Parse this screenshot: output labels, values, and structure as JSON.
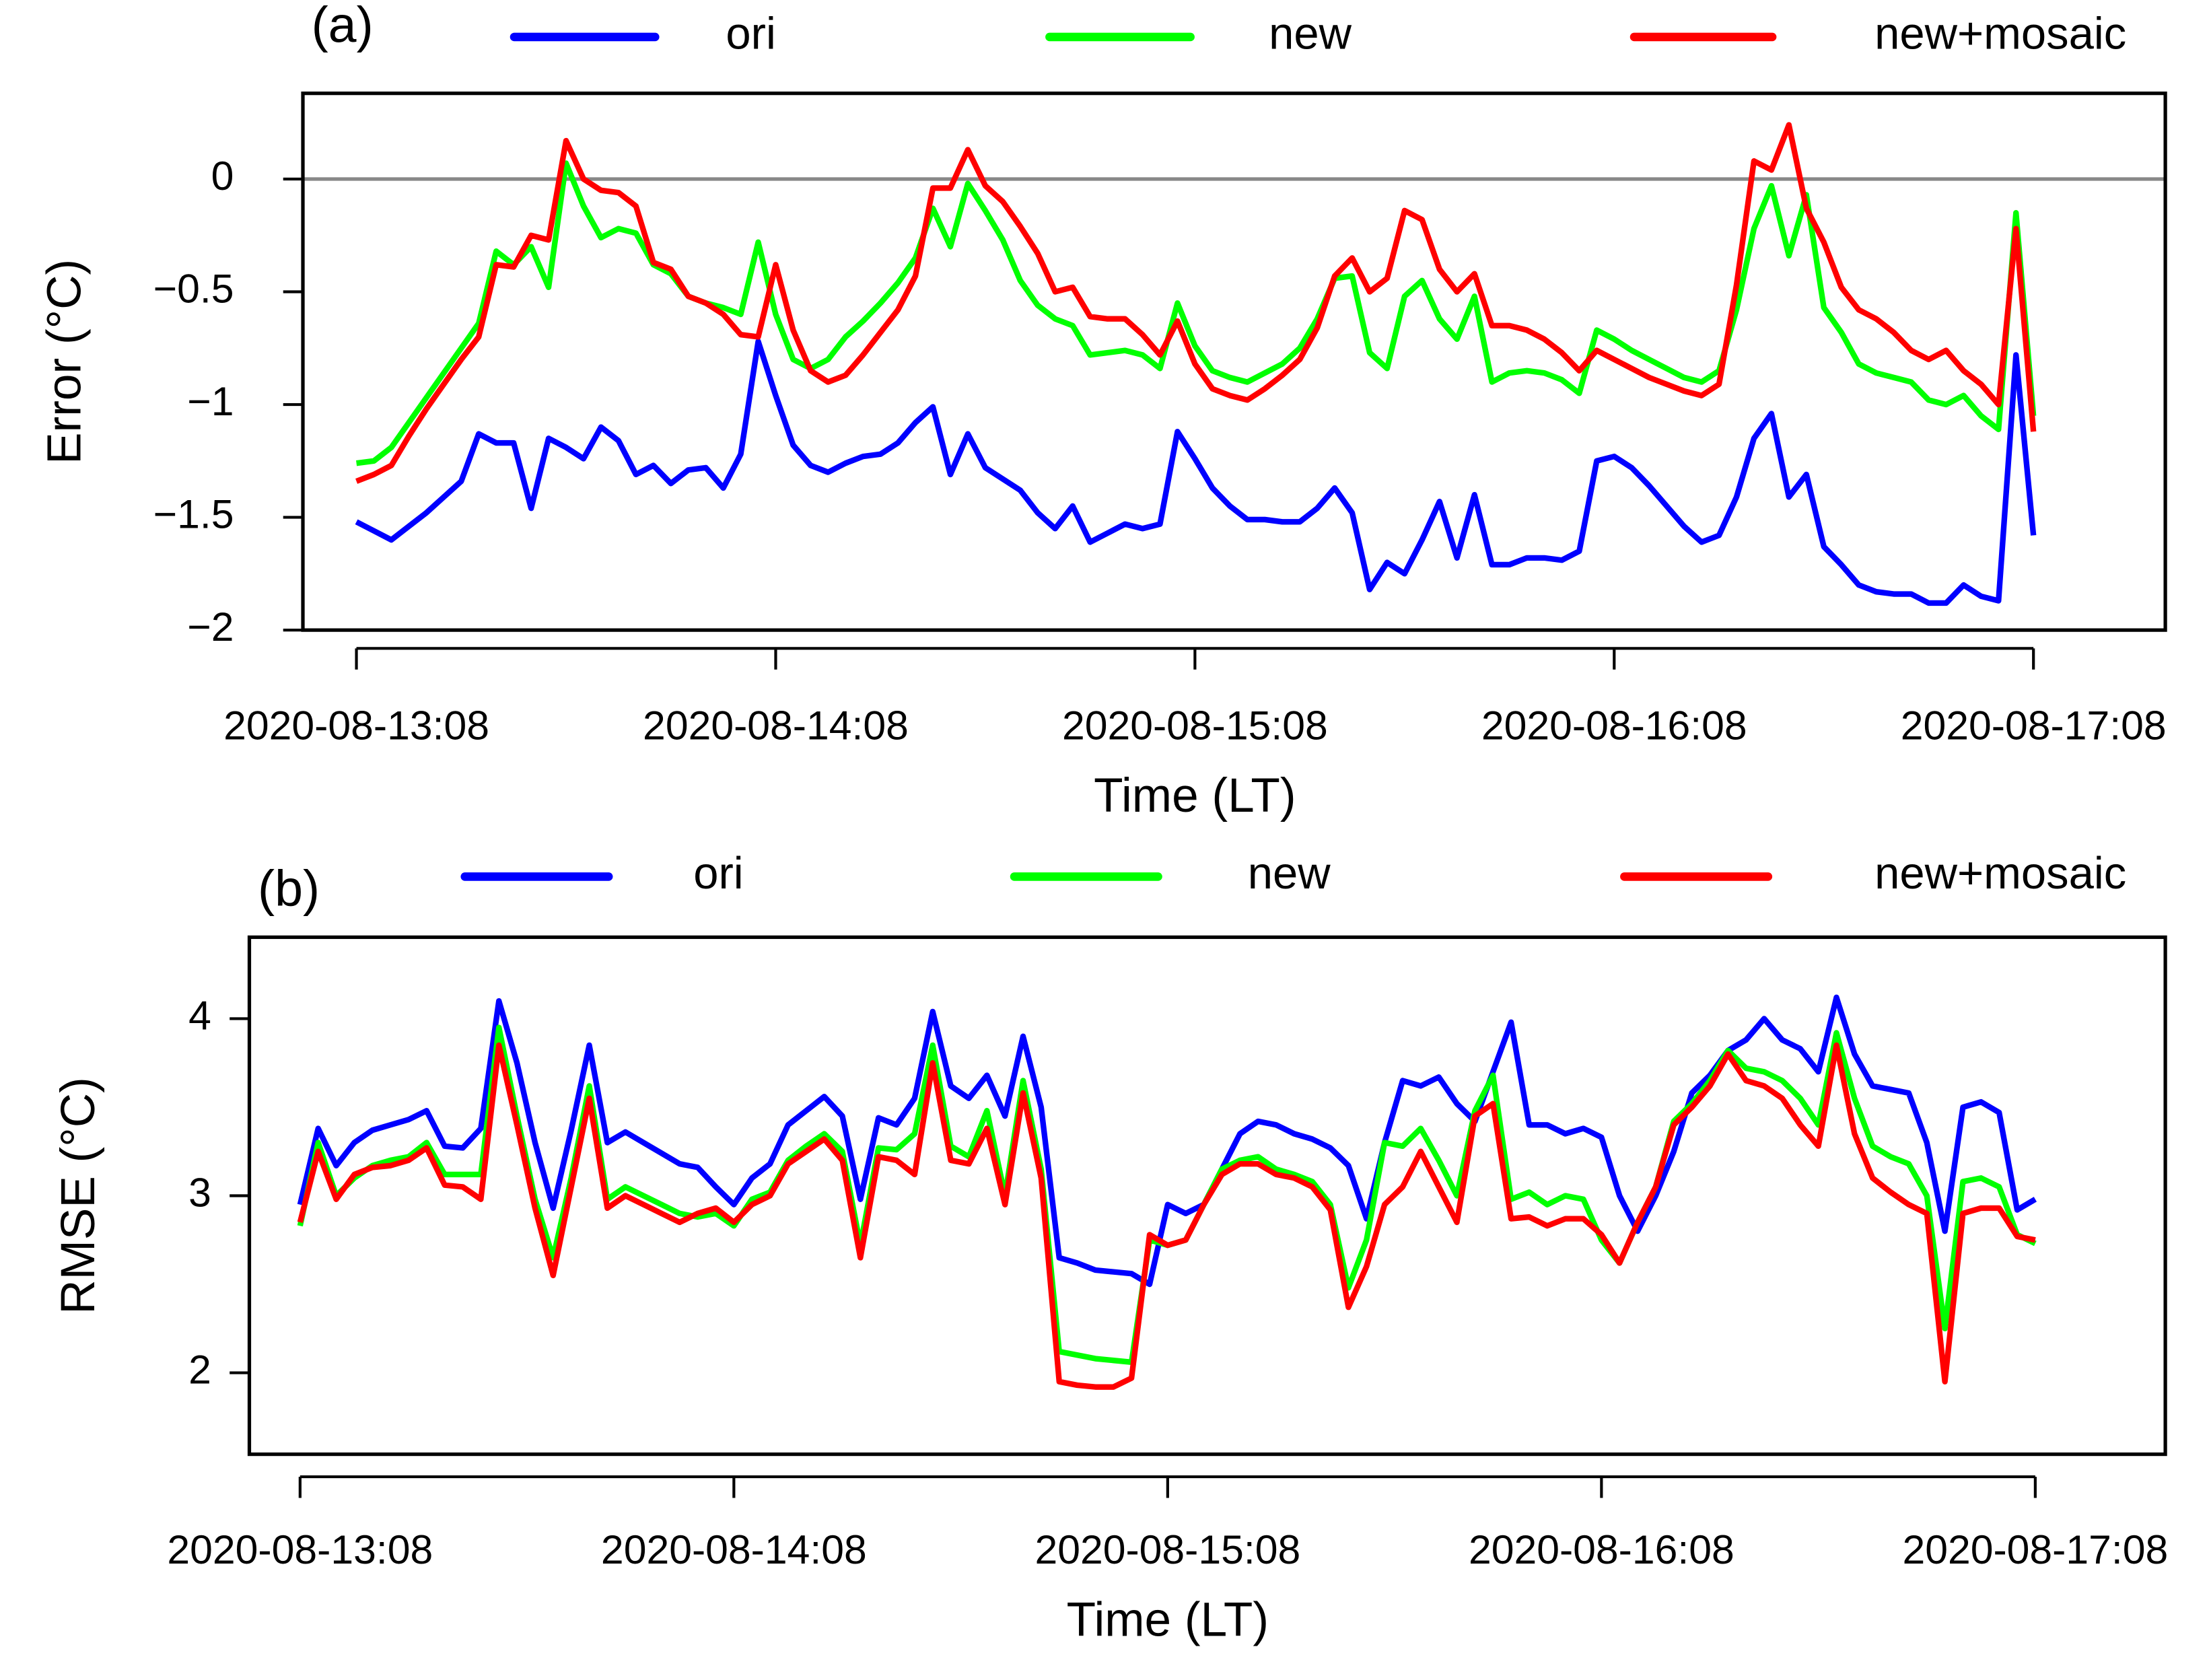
{
  "chart_data": [
    {
      "type": "line",
      "title": "(a)",
      "xlabel": "Time (LT)",
      "ylabel": "Error (°C)",
      "categories": [
        "2020-08-13:08",
        null,
        null,
        null,
        null,
        null,
        null,
        null,
        null,
        null,
        null,
        null,
        null,
        null,
        null,
        null,
        null,
        null,
        null,
        null,
        null,
        null,
        null,
        null,
        "2020-08-14:08",
        null,
        null,
        null,
        null,
        null,
        null,
        null,
        null,
        null,
        null,
        null,
        null,
        null,
        null,
        null,
        null,
        null,
        null,
        null,
        null,
        null,
        null,
        null,
        "2020-08-15:08",
        null,
        null,
        null,
        null,
        null,
        null,
        null,
        null,
        null,
        null,
        null,
        null,
        null,
        null,
        null,
        null,
        null,
        null,
        null,
        null,
        null,
        null,
        null,
        "2020-08-16:08",
        null,
        null,
        null,
        null,
        null,
        null,
        null,
        null,
        null,
        null,
        null,
        null,
        null,
        null,
        null,
        null,
        null,
        null,
        null,
        null,
        null,
        null,
        null,
        "2020-08-17:08"
      ],
      "ylim": [
        -2,
        0.38
      ],
      "yticks": [
        {
          "value": 0,
          "label": "0"
        },
        {
          "value": -0.5,
          "label": "−0.5"
        },
        {
          "value": -1,
          "label": "−1"
        },
        {
          "value": -1.5,
          "label": "−1.5"
        },
        {
          "value": -2,
          "label": "−2"
        }
      ],
      "reference_line": 0,
      "legend": "top",
      "series": [
        {
          "name": "ori",
          "color": "#0000ff",
          "values": [
            -1.52,
            -1.56,
            -1.6,
            -1.54,
            -1.48,
            -1.41,
            -1.34,
            -1.13,
            -1.17,
            -1.17,
            -1.46,
            -1.15,
            -1.19,
            -1.24,
            -1.1,
            -1.16,
            -1.31,
            -1.27,
            -1.35,
            -1.29,
            -1.28,
            -1.37,
            -1.22,
            -0.72,
            -0.96,
            -1.18,
            -1.27,
            -1.3,
            -1.26,
            -1.23,
            -1.22,
            -1.17,
            -1.08,
            -1.01,
            -1.31,
            -1.13,
            -1.28,
            -1.33,
            -1.38,
            -1.48,
            -1.55,
            -1.45,
            -1.61,
            -1.57,
            -1.53,
            -1.55,
            -1.53,
            -1.12,
            -1.24,
            -1.37,
            -1.45,
            -1.51,
            -1.51,
            -1.52,
            -1.52,
            -1.46,
            -1.37,
            -1.48,
            -1.82,
            -1.7,
            -1.75,
            -1.6,
            -1.43,
            -1.68,
            -1.4,
            -1.71,
            -1.71,
            -1.68,
            -1.68,
            -1.69,
            -1.65,
            -1.25,
            -1.23,
            -1.28,
            -1.36,
            -1.45,
            -1.54,
            -1.61,
            -1.58,
            -1.41,
            -1.15,
            -1.04,
            -1.41,
            -1.31,
            -1.63,
            -1.71,
            -1.8,
            -1.83,
            -1.84,
            -1.84,
            -1.88,
            -1.88,
            -1.8,
            -1.85,
            -1.87,
            -0.78,
            -1.58
          ]
        },
        {
          "name": "new",
          "color": "#00ff00",
          "values": [
            -1.26,
            -1.25,
            -1.19,
            -1.08,
            -0.97,
            -0.86,
            -0.75,
            -0.64,
            -0.32,
            -0.38,
            -0.3,
            -0.48,
            0.07,
            -0.12,
            -0.26,
            -0.22,
            -0.24,
            -0.38,
            -0.42,
            -0.52,
            -0.55,
            -0.57,
            -0.6,
            -0.28,
            -0.6,
            -0.8,
            -0.84,
            -0.8,
            -0.7,
            -0.63,
            -0.55,
            -0.46,
            -0.35,
            -0.13,
            -0.3,
            -0.02,
            -0.14,
            -0.27,
            -0.45,
            -0.56,
            -0.62,
            -0.65,
            -0.78,
            -0.77,
            -0.76,
            -0.78,
            -0.84,
            -0.55,
            -0.74,
            -0.85,
            -0.88,
            -0.9,
            -0.86,
            -0.82,
            -0.75,
            -0.62,
            -0.44,
            -0.43,
            -0.77,
            -0.84,
            -0.52,
            -0.45,
            -0.62,
            -0.71,
            -0.52,
            -0.9,
            -0.86,
            -0.85,
            -0.86,
            -0.89,
            -0.95,
            -0.67,
            -0.71,
            -0.76,
            -0.8,
            -0.84,
            -0.88,
            -0.9,
            -0.85,
            -0.58,
            -0.22,
            -0.03,
            -0.34,
            -0.07,
            -0.57,
            -0.68,
            -0.82,
            -0.86,
            -0.88,
            -0.9,
            -0.98,
            -1.0,
            -0.96,
            -1.05,
            -1.11,
            -0.15,
            -1.05
          ]
        },
        {
          "name": "new+mosaic",
          "color": "#ff0000",
          "values": [
            -1.34,
            -1.31,
            -1.27,
            -1.14,
            -1.02,
            -0.91,
            -0.8,
            -0.7,
            -0.38,
            -0.39,
            -0.25,
            -0.27,
            0.17,
            0.0,
            -0.05,
            -0.06,
            -0.12,
            -0.37,
            -0.4,
            -0.52,
            -0.55,
            -0.6,
            -0.69,
            -0.7,
            -0.38,
            -0.67,
            -0.85,
            -0.9,
            -0.87,
            -0.78,
            -0.68,
            -0.58,
            -0.43,
            -0.04,
            -0.04,
            0.13,
            -0.03,
            -0.1,
            -0.21,
            -0.33,
            -0.5,
            -0.48,
            -0.61,
            -0.62,
            -0.62,
            -0.69,
            -0.78,
            -0.63,
            -0.82,
            -0.93,
            -0.96,
            -0.98,
            -0.93,
            -0.87,
            -0.8,
            -0.66,
            -0.43,
            -0.35,
            -0.5,
            -0.44,
            -0.14,
            -0.18,
            -0.4,
            -0.5,
            -0.42,
            -0.65,
            -0.65,
            -0.67,
            -0.71,
            -0.77,
            -0.85,
            -0.76,
            -0.8,
            -0.84,
            -0.88,
            -0.91,
            -0.94,
            -0.96,
            -0.91,
            -0.47,
            0.08,
            0.04,
            0.24,
            -0.13,
            -0.28,
            -0.48,
            -0.58,
            -0.62,
            -0.68,
            -0.76,
            -0.8,
            -0.76,
            -0.85,
            -0.91,
            -1.0,
            -0.22,
            -1.12
          ]
        }
      ]
    },
    {
      "type": "line",
      "title": "(b)",
      "xlabel": "Time (LT)",
      "ylabel": "RMSE (°C)",
      "categories": [
        "2020-08-13:08",
        null,
        null,
        null,
        null,
        null,
        null,
        null,
        null,
        null,
        null,
        null,
        null,
        null,
        null,
        null,
        null,
        null,
        null,
        null,
        null,
        null,
        null,
        null,
        "2020-08-14:08",
        null,
        null,
        null,
        null,
        null,
        null,
        null,
        null,
        null,
        null,
        null,
        null,
        null,
        null,
        null,
        null,
        null,
        null,
        null,
        null,
        null,
        null,
        null,
        "2020-08-15:08",
        null,
        null,
        null,
        null,
        null,
        null,
        null,
        null,
        null,
        null,
        null,
        null,
        null,
        null,
        null,
        null,
        null,
        null,
        null,
        null,
        null,
        null,
        null,
        "2020-08-16:08",
        null,
        null,
        null,
        null,
        null,
        null,
        null,
        null,
        null,
        null,
        null,
        null,
        null,
        null,
        null,
        null,
        null,
        null,
        null,
        null,
        null,
        null,
        null,
        "2020-08-17:08"
      ],
      "ylim": [
        1.54,
        4.46
      ],
      "yticks": [
        4,
        3,
        2
      ],
      "legend": "top",
      "series": [
        {
          "name": "ori",
          "color": "#0000ff",
          "values": [
            2.95,
            3.38,
            3.17,
            3.3,
            3.37,
            3.4,
            3.43,
            3.48,
            3.28,
            3.27,
            3.38,
            4.1,
            3.75,
            3.3,
            2.93,
            3.37,
            3.85,
            3.3,
            3.36,
            3.3,
            3.24,
            3.18,
            3.16,
            3.05,
            2.95,
            3.1,
            3.18,
            3.4,
            3.48,
            3.56,
            3.45,
            2.98,
            3.44,
            3.4,
            3.55,
            4.04,
            3.62,
            3.55,
            3.68,
            3.45,
            3.9,
            3.5,
            2.65,
            2.62,
            2.58,
            2.57,
            2.56,
            2.5,
            2.95,
            2.9,
            2.95,
            3.15,
            3.35,
            3.42,
            3.4,
            3.35,
            3.32,
            3.27,
            3.17,
            2.87,
            3.3,
            3.65,
            3.62,
            3.67,
            3.52,
            3.42,
            3.7,
            3.98,
            3.4,
            3.4,
            3.35,
            3.38,
            3.33,
            3.0,
            2.8,
            3.0,
            3.25,
            3.58,
            3.68,
            3.82,
            3.88,
            4.0,
            3.88,
            3.83,
            3.7,
            4.12,
            3.8,
            3.62,
            3.6,
            3.58,
            3.3,
            2.8,
            3.5,
            3.53,
            3.47,
            2.92,
            2.98
          ]
        },
        {
          "name": "new",
          "color": "#00ff00",
          "values": [
            2.83,
            3.3,
            3.0,
            3.1,
            3.17,
            3.2,
            3.22,
            3.3,
            3.12,
            3.12,
            3.12,
            3.95,
            3.45,
            2.98,
            2.65,
            3.1,
            3.62,
            2.98,
            3.05,
            3.0,
            2.95,
            2.9,
            2.88,
            2.9,
            2.83,
            2.98,
            3.02,
            3.2,
            3.28,
            3.35,
            3.25,
            2.72,
            3.27,
            3.26,
            3.35,
            3.85,
            3.28,
            3.22,
            3.48,
            3.0,
            3.65,
            3.15,
            2.12,
            2.1,
            2.08,
            2.07,
            2.06,
            2.75,
            2.72,
            2.75,
            2.95,
            3.15,
            3.2,
            3.22,
            3.15,
            3.12,
            3.08,
            2.95,
            2.48,
            2.75,
            3.3,
            3.28,
            3.38,
            3.2,
            3.0,
            3.48,
            3.68,
            2.98,
            3.02,
            2.95,
            3.0,
            2.98,
            2.75,
            2.62,
            2.85,
            3.05,
            3.42,
            3.52,
            3.65,
            3.82,
            3.72,
            3.7,
            3.65,
            3.55,
            3.4,
            3.92,
            3.55,
            3.28,
            3.22,
            3.18,
            3.0,
            2.25,
            3.08,
            3.1,
            3.05,
            2.78,
            2.73
          ]
        },
        {
          "name": "new+mosaic",
          "color": "#ff0000",
          "values": [
            2.85,
            3.25,
            2.98,
            3.12,
            3.16,
            3.17,
            3.2,
            3.27,
            3.06,
            3.05,
            2.98,
            3.85,
            3.4,
            2.93,
            2.55,
            3.05,
            3.55,
            2.93,
            3.0,
            2.95,
            2.9,
            2.85,
            2.9,
            2.93,
            2.85,
            2.95,
            3.0,
            3.18,
            3.25,
            3.32,
            3.2,
            2.65,
            3.22,
            3.2,
            3.12,
            3.75,
            3.2,
            3.18,
            3.38,
            2.95,
            3.58,
            3.1,
            1.95,
            1.93,
            1.92,
            1.92,
            1.97,
            2.78,
            2.72,
            2.75,
            2.95,
            3.12,
            3.18,
            3.18,
            3.12,
            3.1,
            3.05,
            2.92,
            2.37,
            2.6,
            2.95,
            3.05,
            3.25,
            3.05,
            2.85,
            3.45,
            3.52,
            2.87,
            2.88,
            2.83,
            2.87,
            2.87,
            2.78,
            2.62,
            2.85,
            3.05,
            3.4,
            3.5,
            3.62,
            3.8,
            3.65,
            3.62,
            3.55,
            3.4,
            3.28,
            3.85,
            3.35,
            3.1,
            3.02,
            2.95,
            2.9,
            1.95,
            2.9,
            2.93,
            2.93,
            2.77,
            2.75
          ]
        }
      ]
    }
  ]
}
